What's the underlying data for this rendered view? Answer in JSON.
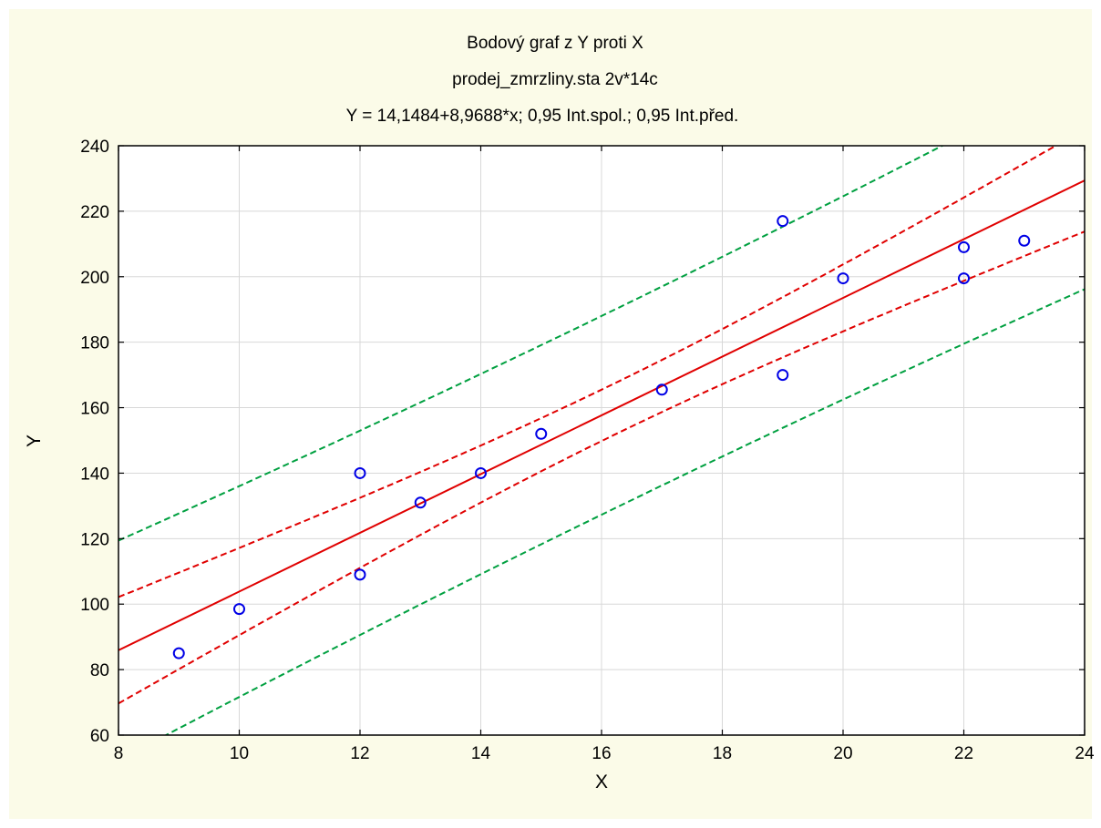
{
  "chart_data": {
    "type": "scatter",
    "title": "Bodový graf z Y proti X",
    "subtitle": "prodej_zmrzliny.sta 2v*14c",
    "subtitle2": "Y = 14,1484+8,9688*x; 0,95 Int.spol.; 0,95 Int.před.",
    "xlabel": "X",
    "ylabel": "Y",
    "xlim": [
      8,
      24
    ],
    "ylim": [
      60,
      240
    ],
    "xticks": [
      "8",
      "10",
      "12",
      "14",
      "16",
      "18",
      "20",
      "22",
      "24"
    ],
    "yticks": [
      "60",
      "80",
      "100",
      "120",
      "140",
      "160",
      "180",
      "200",
      "220",
      "240"
    ],
    "grid": true,
    "points": {
      "x": [
        9,
        10,
        12,
        12,
        13,
        14,
        15,
        17,
        19,
        19,
        20,
        22,
        22,
        23
      ],
      "y": [
        85,
        98.5,
        140,
        109,
        131,
        140,
        152,
        165.5,
        217,
        170,
        199.5,
        209,
        199.5,
        211
      ]
    },
    "regression": {
      "intercept": 14.1484,
      "slope": 8.9688
    },
    "confidence_band": {
      "level": 0.95
    },
    "prediction_band": {
      "level": 0.95
    },
    "colors": {
      "points": "#0000e6",
      "regression": "#e00000",
      "confidence": "#e00000",
      "prediction": "#00a040",
      "background": "#fbfbe8"
    }
  }
}
